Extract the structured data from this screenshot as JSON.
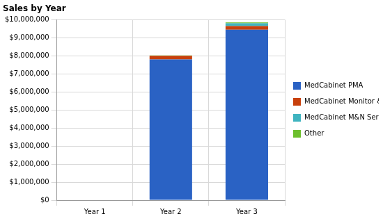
{
  "chart_data": {
    "type": "bar",
    "title": "Sales by Year",
    "categories": [
      "Year 1",
      "Year 2",
      "Year 3"
    ],
    "series": [
      {
        "name": "MedCabinet PMA",
        "color": "#2a62c4",
        "values": [
          0,
          7800000,
          9450000
        ]
      },
      {
        "name": "MedCabinet Monitor & Notificatio",
        "color": "#c8400c",
        "values": [
          0,
          200000,
          200000
        ]
      },
      {
        "name": "MedCabinet M&N Service Renev",
        "color": "#3fb4c0",
        "values": [
          0,
          0,
          150000
        ]
      },
      {
        "name": "Other",
        "color": "#6cbf2c",
        "values": [
          0,
          20000,
          50000
        ]
      }
    ],
    "ylim": [
      0,
      10000000
    ],
    "yticks": [
      {
        "value": 0,
        "label": "$0"
      },
      {
        "value": 1000000,
        "label": "$1,000,000"
      },
      {
        "value": 2000000,
        "label": "$2,000,000"
      },
      {
        "value": 3000000,
        "label": "$3,000,000"
      },
      {
        "value": 4000000,
        "label": "$4,000,000"
      },
      {
        "value": 5000000,
        "label": "$5,000,000"
      },
      {
        "value": 6000000,
        "label": "$6,000,000"
      },
      {
        "value": 7000000,
        "label": "$7,000,000"
      },
      {
        "value": 8000000,
        "label": "$8,000,000"
      },
      {
        "value": 9000000,
        "label": "$9,000,000"
      },
      {
        "value": 10000000,
        "label": "$10,000,000"
      }
    ],
    "stacked": true,
    "grid": true,
    "legend": "right"
  }
}
